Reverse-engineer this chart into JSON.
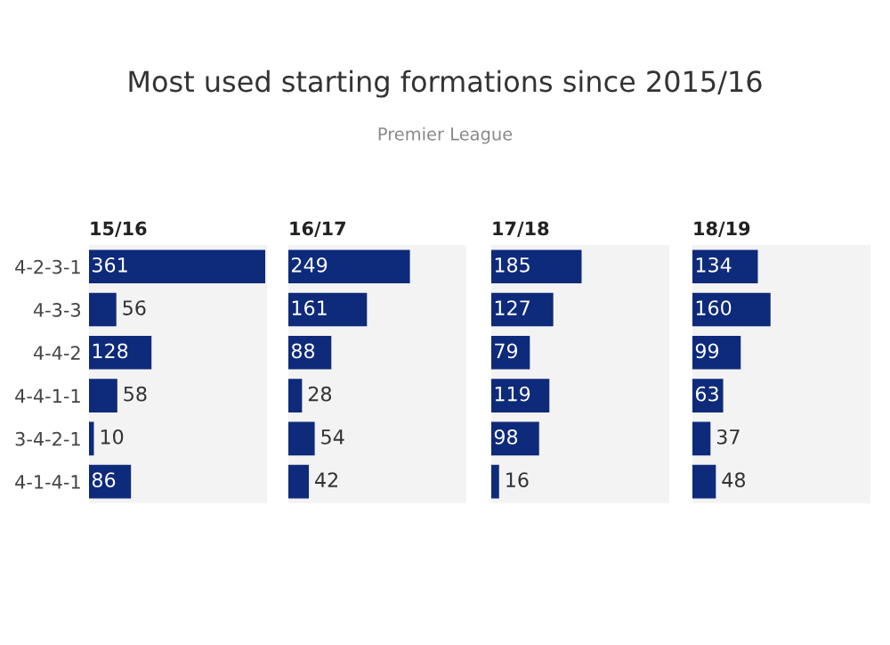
{
  "chart_data": [
    {
      "type": "other",
      "title": "Most used starting formations since 2015/16",
      "subtitle": "Premier League"
    },
    {
      "type": "bar",
      "orientation": "horizontal",
      "title": "15/16",
      "categories": [
        "4-2-3-1",
        "4-3-3",
        "4-4-2",
        "4-4-1-1",
        "3-4-2-1",
        "4-1-4-1"
      ],
      "values": [
        361,
        56,
        128,
        58,
        10,
        86
      ],
      "color": "#0e2a7a",
      "data_labels": true,
      "tick_labels": "y"
    },
    {
      "type": "bar",
      "orientation": "horizontal",
      "title": "16/17",
      "categories": [
        null,
        null,
        null,
        null,
        null,
        null
      ],
      "values": [
        249,
        161,
        88,
        28,
        54,
        42
      ],
      "color": "#0e2a7a",
      "data_labels": true,
      "tick_labels": false
    },
    {
      "type": "bar",
      "orientation": "horizontal",
      "title": "17/18",
      "categories": [
        null,
        null,
        null,
        null,
        null,
        null
      ],
      "values": [
        185,
        127,
        79,
        119,
        98,
        16
      ],
      "color": "#0e2a7a",
      "data_labels": true,
      "tick_labels": false
    },
    {
      "type": "bar",
      "orientation": "horizontal",
      "title": "18/19",
      "categories": [
        null,
        null,
        null,
        null,
        null,
        null
      ],
      "values": [
        134,
        160,
        99,
        63,
        37,
        48
      ],
      "color": "#0e2a7a",
      "data_labels": true,
      "tick_labels": false
    }
  ]
}
